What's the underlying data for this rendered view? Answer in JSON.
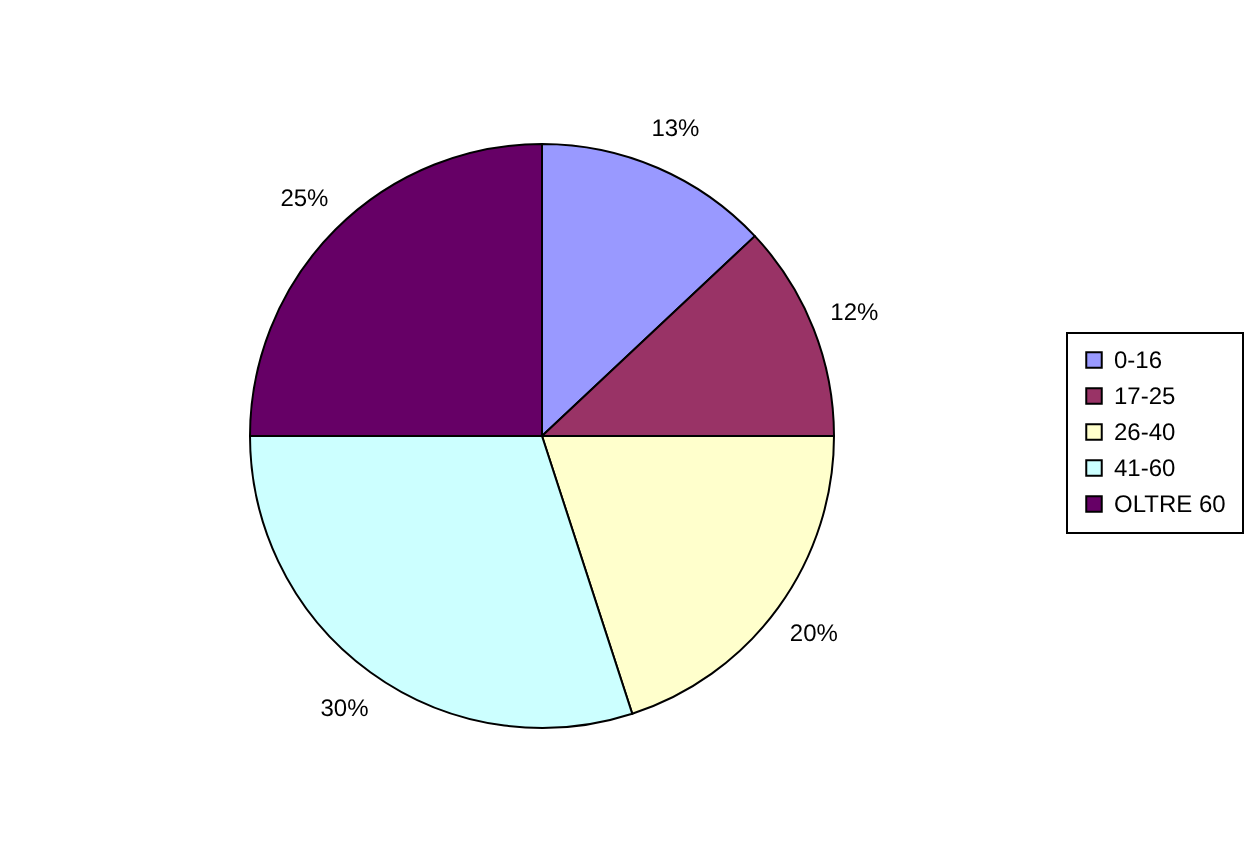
{
  "chart_data": {
    "type": "pie",
    "categories": [
      "0-16",
      "17-25",
      "26-40",
      "41-60",
      "OLTRE 60"
    ],
    "values": [
      13,
      12,
      20,
      30,
      25
    ],
    "colors": [
      "#9999ff",
      "#993366",
      "#ffffcc",
      "#ccffff",
      "#660066"
    ],
    "value_labels": [
      "13%",
      "12%",
      "20%",
      "30%",
      "25%"
    ],
    "legend": "right"
  }
}
